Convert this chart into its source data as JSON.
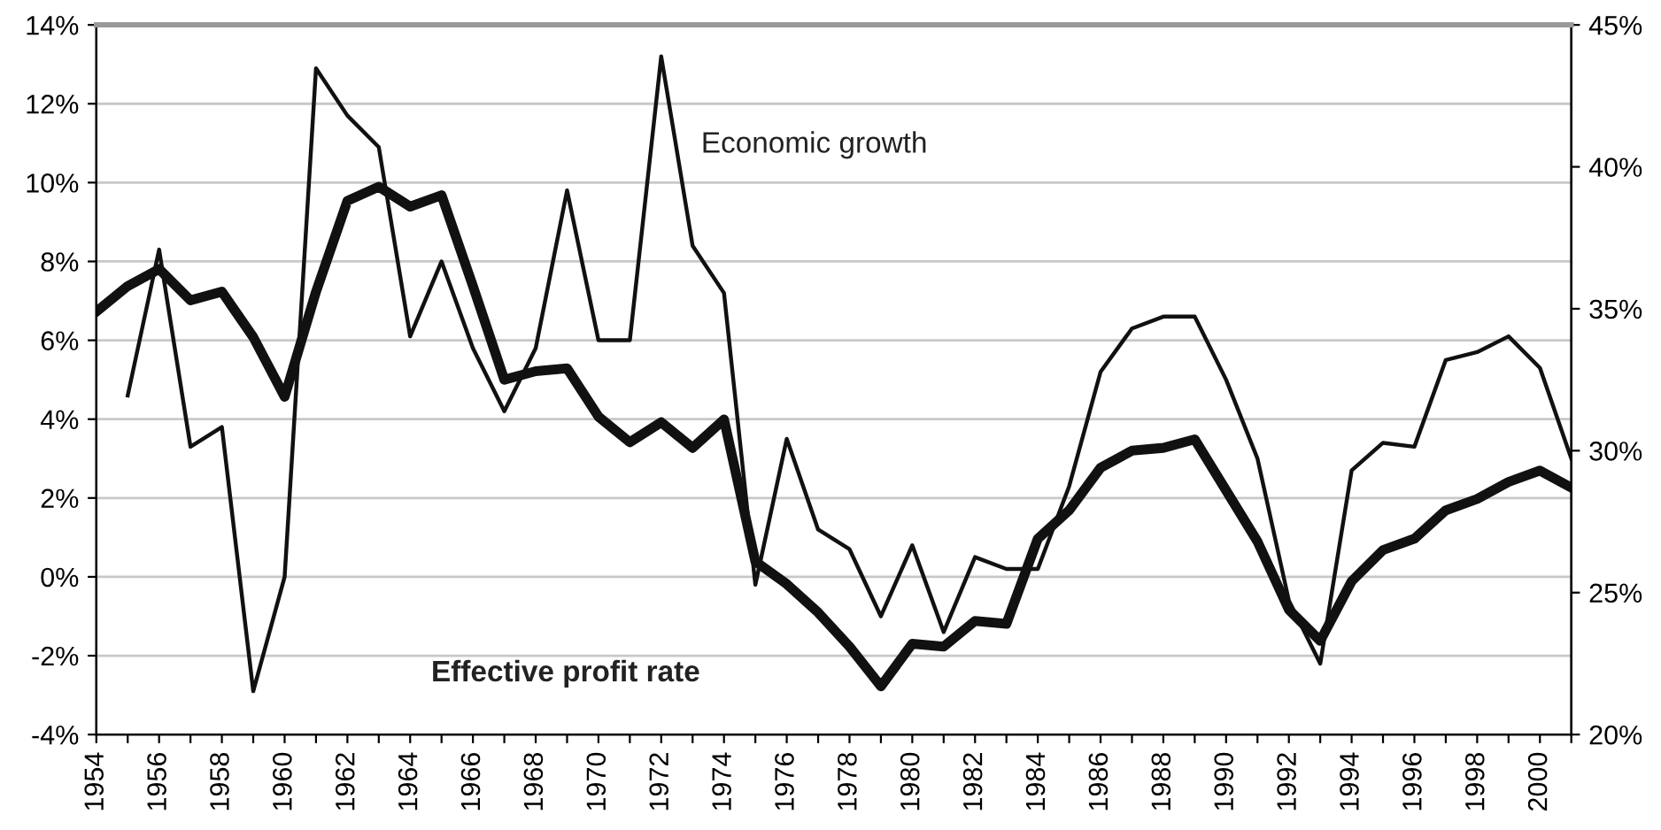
{
  "chart_data": {
    "type": "line",
    "x": [
      1954,
      1955,
      1956,
      1957,
      1958,
      1959,
      1960,
      1961,
      1962,
      1963,
      1964,
      1965,
      1966,
      1967,
      1968,
      1969,
      1970,
      1971,
      1972,
      1973,
      1974,
      1975,
      1976,
      1977,
      1978,
      1979,
      1980,
      1981,
      1982,
      1983,
      1984,
      1985,
      1986,
      1987,
      1988,
      1989,
      1990,
      1991,
      1992,
      1993,
      1994,
      1995,
      1996,
      1997,
      1998,
      1999,
      2000,
      2001
    ],
    "series": [
      {
        "color": "#111111",
        "values": [
          null,
          4.6,
          8.3,
          3.3,
          3.8,
          -2.9,
          0.0,
          12.9,
          11.7,
          10.9,
          6.1,
          8.0,
          5.8,
          4.2,
          5.8,
          9.8,
          6.0,
          6.0,
          13.2,
          8.4,
          7.2,
          -0.2,
          3.5,
          1.2,
          0.7,
          -1.0,
          0.8,
          -1.4,
          0.5,
          0.2,
          0.2,
          2.3,
          5.2,
          6.3,
          6.6,
          6.6,
          5.0,
          3.0,
          -0.6,
          -2.2,
          2.7,
          3.4,
          3.3,
          5.5,
          5.7,
          6.1,
          5.3,
          3.0
        ]
      },
      {
        "color": "#111111",
        "axis": "y2",
        "values": [
          34.9,
          35.8,
          36.4,
          35.3,
          35.6,
          34.0,
          31.9,
          35.6,
          38.8,
          39.3,
          38.6,
          39.0,
          35.8,
          32.5,
          32.8,
          32.9,
          31.2,
          30.3,
          31.0,
          30.1,
          31.1,
          26.1,
          25.3,
          24.3,
          23.1,
          21.7,
          23.2,
          23.1,
          24.0,
          23.9,
          26.9,
          27.9,
          29.4,
          30.0,
          30.1,
          30.4,
          28.6,
          26.8,
          24.4,
          23.3,
          25.4,
          26.5,
          26.9,
          27.9,
          28.3,
          28.9,
          29.3,
          28.7
        ]
      }
    ],
    "annotations": [
      "Economic growth",
      "Effective profit rate"
    ],
    "xlim": [
      1954,
      2001
    ],
    "xticks": [
      1954,
      {
        "value": 1955,
        "label": null
      },
      1956,
      {
        "value": 1957,
        "label": null
      },
      1958,
      {
        "value": 1959,
        "label": null
      },
      1960,
      {
        "value": 1961,
        "label": null
      },
      1962,
      {
        "value": 1963,
        "label": null
      },
      1964,
      {
        "value": 1965,
        "label": null
      },
      1966,
      {
        "value": 1967,
        "label": null
      },
      1968,
      {
        "value": 1969,
        "label": null
      },
      1970,
      {
        "value": 1971,
        "label": null
      },
      1972,
      {
        "value": 1973,
        "label": null
      },
      1974,
      {
        "value": 1975,
        "label": null
      },
      1976,
      {
        "value": 1977,
        "label": null
      },
      1978,
      {
        "value": 1979,
        "label": null
      },
      1980,
      {
        "value": 1981,
        "label": null
      },
      1982,
      {
        "value": 1983,
        "label": null
      },
      1984,
      {
        "value": 1985,
        "label": null
      },
      1986,
      {
        "value": 1987,
        "label": null
      },
      1988,
      {
        "value": 1989,
        "label": null
      },
      1990,
      {
        "value": 1991,
        "label": null
      },
      1992,
      {
        "value": 1993,
        "label": null
      },
      1994,
      {
        "value": 1995,
        "label": null
      },
      1996,
      {
        "value": 1997,
        "label": null
      },
      1998,
      {
        "value": 1999,
        "label": null
      },
      2000,
      {
        "value": 2001,
        "label": null
      }
    ],
    "ylim": [
      -4,
      14
    ],
    "yticks": [
      {
        "value": -4,
        "label": "-4%"
      },
      {
        "value": -2,
        "label": "-2%"
      },
      {
        "value": 0,
        "label": "0%"
      },
      {
        "value": 2,
        "label": "2%"
      },
      {
        "value": 4,
        "label": "4%"
      },
      {
        "value": 6,
        "label": "6%"
      },
      {
        "value": 8,
        "label": "8%"
      },
      {
        "value": 10,
        "label": "10%"
      },
      {
        "value": 12,
        "label": "12%"
      },
      {
        "value": 14,
        "label": "14%"
      }
    ],
    "y2lim": [
      20,
      45
    ],
    "y2ticks": [
      {
        "value": 20,
        "label": "20%"
      },
      {
        "value": 25,
        "label": "25%"
      },
      {
        "value": 30,
        "label": "30%"
      },
      {
        "value": 35,
        "label": "35%"
      },
      {
        "value": 40,
        "label": "40%"
      },
      {
        "value": 45,
        "label": "45%"
      }
    ],
    "grid": "y",
    "marker": "none",
    "line_style": "solid"
  }
}
